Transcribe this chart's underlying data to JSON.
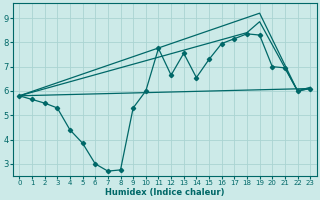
{
  "background_color": "#cceae8",
  "grid_color": "#aad4d2",
  "line_color": "#006868",
  "xlabel": "Humidex (Indice chaleur)",
  "xlim": [
    -0.5,
    23.5
  ],
  "ylim": [
    2.5,
    9.6
  ],
  "yticks": [
    3,
    4,
    5,
    6,
    7,
    8,
    9
  ],
  "xticks": [
    0,
    1,
    2,
    3,
    4,
    5,
    6,
    7,
    8,
    9,
    10,
    11,
    12,
    13,
    14,
    15,
    16,
    17,
    18,
    19,
    20,
    21,
    22,
    23
  ],
  "series": [
    {
      "x": [
        0,
        23
      ],
      "y": [
        5.8,
        6.1
      ],
      "marker": false,
      "lw": 0.9
    },
    {
      "x": [
        0,
        19,
        22,
        23
      ],
      "y": [
        5.8,
        9.2,
        6.0,
        6.1
      ],
      "marker": false,
      "lw": 0.9
    },
    {
      "x": [
        0,
        18,
        19,
        22,
        23
      ],
      "y": [
        5.8,
        8.4,
        8.85,
        6.0,
        6.15
      ],
      "marker": false,
      "lw": 0.9
    },
    {
      "x": [
        0,
        1,
        2,
        3,
        4,
        5,
        6,
        7,
        8,
        9,
        10,
        11,
        12,
        13,
        14,
        15,
        16,
        17,
        18,
        19,
        20,
        21,
        22,
        23
      ],
      "y": [
        5.8,
        5.65,
        5.5,
        5.3,
        4.4,
        3.85,
        3.0,
        2.7,
        2.75,
        5.3,
        6.0,
        7.75,
        6.65,
        7.55,
        6.55,
        7.3,
        7.95,
        8.15,
        8.35,
        8.3,
        7.0,
        6.95,
        6.0,
        6.1
      ],
      "marker": true,
      "lw": 0.9
    }
  ]
}
